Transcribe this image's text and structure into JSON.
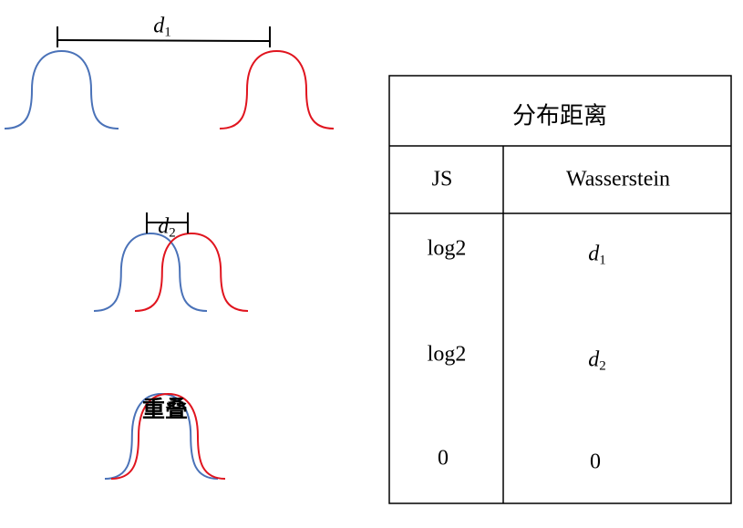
{
  "colors": {
    "p_curve": "#4a72b8",
    "q_curve": "#e0141e",
    "line": "#000000"
  },
  "left": {
    "case1": {
      "label_var": "d",
      "label_sub": "1"
    },
    "case2": {
      "label_var": "d",
      "label_sub": "2"
    },
    "case3": {
      "label": "重叠"
    }
  },
  "table": {
    "title": "分布距离",
    "headers": [
      "JS",
      "Wasserstein"
    ],
    "rows": [
      {
        "js": "log2",
        "w_var": "d",
        "w_sub": "1"
      },
      {
        "js": "log2",
        "w_var": "d",
        "w_sub": "2"
      },
      {
        "js": "0",
        "w": "0"
      }
    ]
  }
}
